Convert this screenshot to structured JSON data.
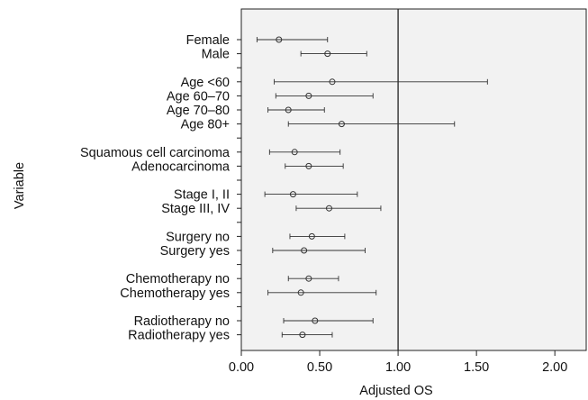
{
  "chart_data": {
    "type": "scatter",
    "subtype": "forest-plot",
    "title": "",
    "xlabel": "Adjusted OS",
    "ylabel": "Variable",
    "xlim": [
      0,
      2.2
    ],
    "xticks": [
      0,
      0.5,
      1.0,
      1.5,
      2.0
    ],
    "xtick_labels": [
      "0.00",
      "0.50",
      "1.00",
      "1.50",
      "2.00"
    ],
    "reference_line": 1.0,
    "grid": false,
    "legend": "none",
    "groups": [
      {
        "rows": [
          {
            "label": "Female",
            "estimate": 0.24,
            "low": 0.1,
            "high": 0.55
          },
          {
            "label": "Male",
            "estimate": 0.55,
            "low": 0.38,
            "high": 0.8
          }
        ]
      },
      {
        "rows": [
          {
            "label": "Age <60",
            "estimate": 0.58,
            "low": 0.21,
            "high": 1.57
          },
          {
            "label": "Age 60–70",
            "estimate": 0.43,
            "low": 0.22,
            "high": 0.84
          },
          {
            "label": "Age 70–80",
            "estimate": 0.3,
            "low": 0.17,
            "high": 0.53
          },
          {
            "label": "Age 80+",
            "estimate": 0.64,
            "low": 0.3,
            "high": 1.36
          }
        ]
      },
      {
        "rows": [
          {
            "label": "Squamous cell carcinoma",
            "estimate": 0.34,
            "low": 0.18,
            "high": 0.63
          },
          {
            "label": "Adenocarcinoma",
            "estimate": 0.43,
            "low": 0.28,
            "high": 0.65
          }
        ]
      },
      {
        "rows": [
          {
            "label": "Stage I, II",
            "estimate": 0.33,
            "low": 0.15,
            "high": 0.74
          },
          {
            "label": "Stage III, IV",
            "estimate": 0.56,
            "low": 0.35,
            "high": 0.89
          }
        ]
      },
      {
        "rows": [
          {
            "label": "Surgery no",
            "estimate": 0.45,
            "low": 0.31,
            "high": 0.66
          },
          {
            "label": "Surgery yes",
            "estimate": 0.4,
            "low": 0.2,
            "high": 0.79
          }
        ]
      },
      {
        "rows": [
          {
            "label": "Chemotherapy no",
            "estimate": 0.43,
            "low": 0.3,
            "high": 0.62
          },
          {
            "label": "Chemotherapy yes",
            "estimate": 0.38,
            "low": 0.17,
            "high": 0.86
          }
        ]
      },
      {
        "rows": [
          {
            "label": "Radiotherapy no",
            "estimate": 0.47,
            "low": 0.27,
            "high": 0.84
          },
          {
            "label": "Radiotherapy yes",
            "estimate": 0.39,
            "low": 0.26,
            "high": 0.58
          }
        ]
      }
    ]
  },
  "colors": {
    "frame": "#222222",
    "plot_background": "#f2f2f2",
    "marker": "#333333",
    "line": "#333333",
    "reference": "#222222"
  }
}
